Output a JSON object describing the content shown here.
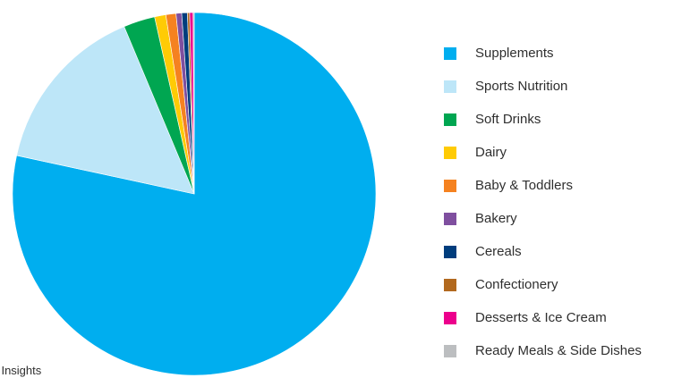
{
  "chart_data": {
    "type": "pie",
    "title": "",
    "legend_position": "right",
    "start_angle_deg": 0,
    "direction": "clockwise",
    "slices": [
      {
        "label": "Supplements",
        "value": 78.4,
        "color": "#00aeef"
      },
      {
        "label": "Sports Nutrition",
        "value": 15.3,
        "color": "#bde6f8"
      },
      {
        "label": "Soft Drinks",
        "value": 2.8,
        "color": "#00a651"
      },
      {
        "label": "Dairy",
        "value": 1.0,
        "color": "#ffcb05"
      },
      {
        "label": "Baby & Toddlers",
        "value": 0.9,
        "color": "#f58220"
      },
      {
        "label": "Bakery",
        "value": 0.5,
        "color": "#7f4f9f"
      },
      {
        "label": "Cereals",
        "value": 0.5,
        "color": "#003d7d"
      },
      {
        "label": "Confectionery",
        "value": 0.2,
        "color": "#b2691e"
      },
      {
        "label": "Desserts & Ice Cream",
        "value": 0.3,
        "color": "#ec008c"
      },
      {
        "label": "Ready Meals & Side Dishes",
        "value": 0.1,
        "color": "#bcbec0"
      }
    ]
  },
  "source_note": "et Insights"
}
